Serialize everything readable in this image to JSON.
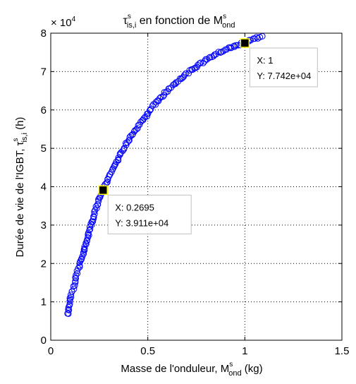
{
  "chart_data": {
    "type": "scatter",
    "title_main": "τ",
    "title_sup": "s",
    "title_sub": "is,i",
    "title_mid": " en fonction de M",
    "title_sup2": "s",
    "title_sub2": "ond",
    "xlabel_main": "Masse de l'onduleur, M",
    "xlabel_sup": "s",
    "xlabel_sub": "ond",
    "xlabel_unit": " (kg)",
    "ylabel_main": "Durée de vie de l'IGBT, τ",
    "ylabel_sup": "s",
    "ylabel_sub": "is,i",
    "ylabel_unit": " (h)",
    "y_multiplier": "× 10",
    "y_multiplier_exp": "4",
    "xlim": [
      0,
      1.5
    ],
    "ylim": [
      0,
      80000
    ],
    "x_ticks": [
      0,
      0.5,
      1,
      1.5
    ],
    "x_tick_labels": [
      "0",
      "0.5",
      "1",
      "1.5"
    ],
    "y_ticks": [
      0,
      10000,
      20000,
      30000,
      40000,
      50000,
      60000,
      70000,
      80000
    ],
    "y_tick_labels": [
      "0",
      "1",
      "2",
      "3",
      "4",
      "5",
      "6",
      "7",
      "8"
    ],
    "grid": true,
    "grid_style": "dotted",
    "marker": "circle",
    "marker_color": "#0000ff",
    "curve_points": [
      [
        0.09,
        6700
      ],
      [
        0.095,
        8500
      ],
      [
        0.1,
        10500
      ],
      [
        0.11,
        12500
      ],
      [
        0.12,
        14500
      ],
      [
        0.13,
        16500
      ],
      [
        0.145,
        19000
      ],
      [
        0.16,
        21500
      ],
      [
        0.18,
        25000
      ],
      [
        0.2,
        28500
      ],
      [
        0.22,
        32000
      ],
      [
        0.245,
        36000
      ],
      [
        0.27,
        39110
      ],
      [
        0.3,
        42500
      ],
      [
        0.33,
        45500
      ],
      [
        0.37,
        49500
      ],
      [
        0.42,
        53500
      ],
      [
        0.47,
        57000
      ],
      [
        0.52,
        60500
      ],
      [
        0.58,
        64000
      ],
      [
        0.64,
        67000
      ],
      [
        0.7,
        69500
      ],
      [
        0.76,
        71700
      ],
      [
        0.82,
        73700
      ],
      [
        0.88,
        75300
      ],
      [
        0.94,
        76600
      ],
      [
        1.0,
        77420
      ],
      [
        1.05,
        78600
      ],
      [
        1.09,
        79200
      ]
    ],
    "datatips": [
      {
        "x": 0.2695,
        "y": 39110,
        "x_label": "X: 0.2695",
        "y_label": "Y: 3.911e+04",
        "side": "right"
      },
      {
        "x": 1.0,
        "y": 77420,
        "x_label": "X: 1",
        "y_label": "Y: 7.742e+04",
        "side": "right"
      }
    ],
    "datatip_colors": {
      "box_border": "#c0c0c0",
      "box_fill": "#ffffff",
      "marker_fill": "#000000",
      "marker_border": "#ffff00"
    }
  }
}
